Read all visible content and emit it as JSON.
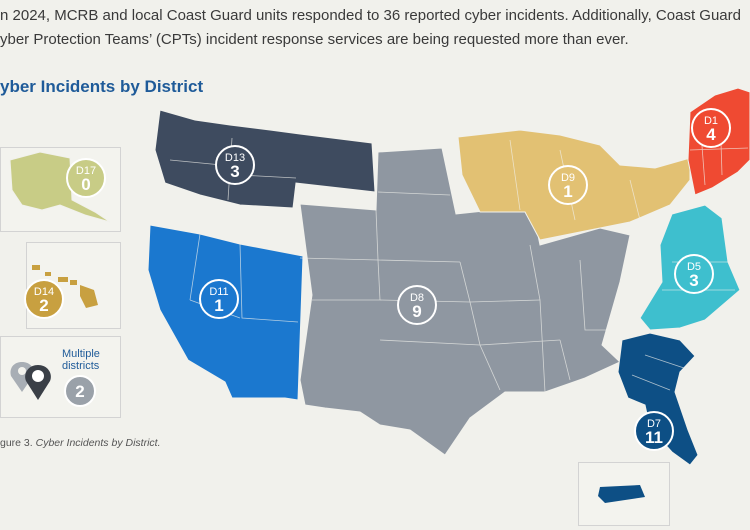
{
  "intro": {
    "line1": "n 2024, MCRB and local Coast Guard units responded to 36 reported cyber incidents. Additionally, Coast Guard",
    "line2": "yber Protection Teams’ (CPTs) incident response services are being requested more than ever."
  },
  "heading": "yber Incidents by District",
  "caption": {
    "prefix": "gure 3. ",
    "title": "Cyber Incidents by District."
  },
  "colors": {
    "d1": "#ef4a32",
    "d5": "#3ebfce",
    "d7": "#0d4f85",
    "d8": "#8f97a1",
    "d9": "#e2c173",
    "d11": "#1b78cf",
    "d13": "#3e4b5f",
    "d14": "#c8a040",
    "d17": "#c8cc86",
    "multi": "#9aa1a9"
  },
  "districts": [
    {
      "id": "d1",
      "code": "D1",
      "count": "4"
    },
    {
      "id": "d5",
      "code": "D5",
      "count": "3"
    },
    {
      "id": "d7",
      "code": "D7",
      "count": "11"
    },
    {
      "id": "d8",
      "code": "D8",
      "count": "9"
    },
    {
      "id": "d9",
      "code": "D9",
      "count": "1"
    },
    {
      "id": "d11",
      "code": "D11",
      "count": "1"
    },
    {
      "id": "d13",
      "code": "D13",
      "count": "3"
    },
    {
      "id": "d14",
      "code": "D14",
      "count": "2"
    },
    {
      "id": "d17",
      "code": "D17",
      "count": "0"
    }
  ],
  "legend": {
    "line1": "Multiple",
    "line2": "districts",
    "count": "2"
  }
}
